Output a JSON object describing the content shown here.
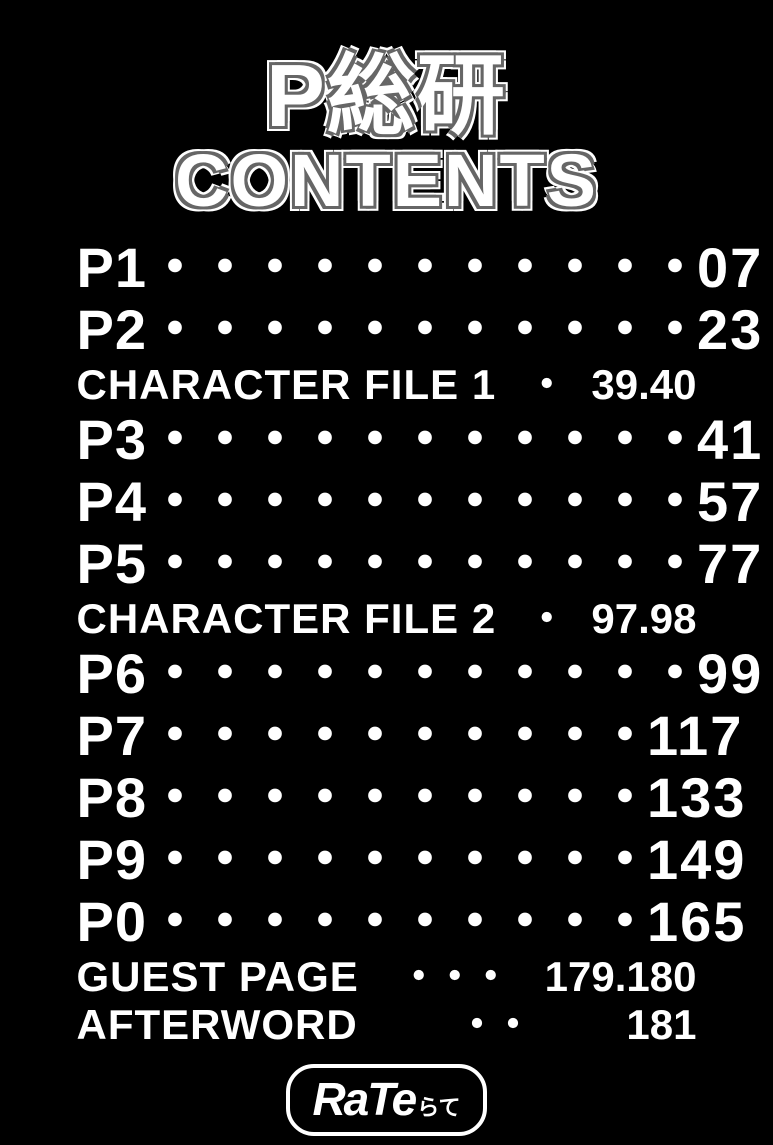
{
  "title": {
    "line1": "P総研",
    "line2": "CONTENTS"
  },
  "entries": [
    {
      "label": "P1",
      "dots": "・・・・・・・・・・・",
      "page": "07",
      "small": false
    },
    {
      "label": "P2",
      "dots": "・・・・・・・・・・・",
      "page": "23",
      "small": false
    },
    {
      "label": "CHARACTER FILE 1",
      "dots": "・",
      "page": "39.40",
      "small": true
    },
    {
      "label": "P3",
      "dots": "・・・・・・・・・・・",
      "page": "41",
      "small": false
    },
    {
      "label": "P4",
      "dots": "・・・・・・・・・・・",
      "page": "57",
      "small": false
    },
    {
      "label": "P5",
      "dots": "・・・・・・・・・・・",
      "page": "77",
      "small": false
    },
    {
      "label": "CHARACTER FILE 2",
      "dots": "・",
      "page": "97.98",
      "small": true
    },
    {
      "label": "P6",
      "dots": "・・・・・・・・・・・",
      "page": "99",
      "small": false
    },
    {
      "label": "P7",
      "dots": "・・・・・・・・・・",
      "page": "117",
      "small": false
    },
    {
      "label": "P8",
      "dots": "・・・・・・・・・・",
      "page": "133",
      "small": false
    },
    {
      "label": "P9",
      "dots": "・・・・・・・・・・",
      "page": "149",
      "small": false
    },
    {
      "label": "P0",
      "dots": "・・・・・・・・・・",
      "page": "165",
      "small": false
    },
    {
      "label": "GUEST PAGE",
      "dots": "・・・",
      "page": "179.180",
      "small": true
    },
    {
      "label": "AFTERWORD",
      "dots": "・・",
      "page": "181",
      "small": true
    }
  ],
  "logo": {
    "main": "RaTe",
    "sub": "らて"
  },
  "colors": {
    "bg": "#000000",
    "fg": "#ffffff",
    "outline": "#666666"
  }
}
